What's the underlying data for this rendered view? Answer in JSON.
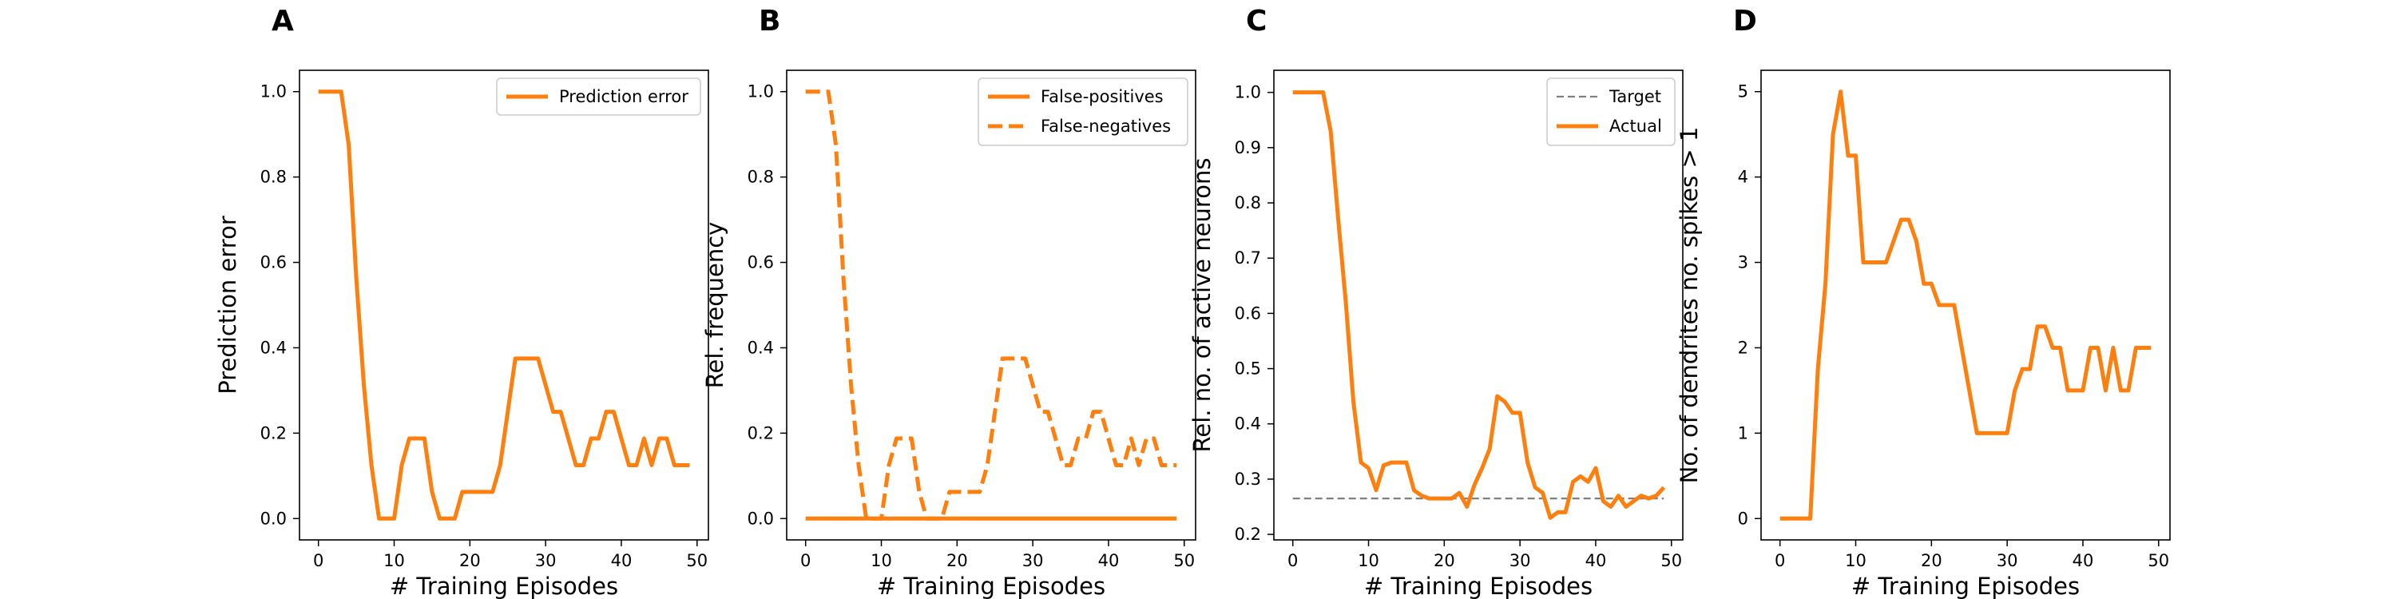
{
  "figure": {
    "color_line": "#ff7f0e",
    "color_target": "#808080"
  },
  "chart_data": [
    {
      "type": "line",
      "panel_label": "A",
      "xlabel": "# Training Episodes",
      "ylabel": "Prediction error",
      "xlim": [
        -2.5,
        51.5
      ],
      "ylim": [
        -0.05,
        1.05
      ],
      "xticks": [
        0,
        10,
        20,
        30,
        40,
        50
      ],
      "yticks": [
        0.0,
        0.2,
        0.4,
        0.6,
        0.8,
        1.0
      ],
      "ytick_labels": [
        "0.0",
        "0.2",
        "0.4",
        "0.6",
        "0.8",
        "1.0"
      ],
      "legend": "top-right",
      "series": [
        {
          "name": "Prediction error",
          "style": "solid",
          "x": [
            0,
            1,
            2,
            3,
            4,
            5,
            6,
            7,
            8,
            9,
            10,
            11,
            12,
            13,
            14,
            15,
            16,
            17,
            18,
            19,
            20,
            21,
            22,
            23,
            24,
            25,
            26,
            27,
            28,
            29,
            30,
            31,
            32,
            33,
            34,
            35,
            36,
            37,
            38,
            39,
            40,
            41,
            42,
            43,
            44,
            45,
            46,
            47,
            48,
            49
          ],
          "y": [
            1.0,
            1.0,
            1.0,
            1.0,
            0.875,
            0.5625,
            0.3125,
            0.125,
            0.0,
            0.0,
            0.0,
            0.125,
            0.1875,
            0.1875,
            0.1875,
            0.0625,
            0.0,
            0.0,
            0.0,
            0.0625,
            0.0625,
            0.0625,
            0.0625,
            0.0625,
            0.125,
            0.25,
            0.375,
            0.375,
            0.375,
            0.375,
            0.3125,
            0.25,
            0.25,
            0.1875,
            0.125,
            0.125,
            0.1875,
            0.1875,
            0.25,
            0.25,
            0.1875,
            0.125,
            0.125,
            0.1875,
            0.125,
            0.1875,
            0.1875,
            0.125,
            0.125,
            0.125
          ]
        }
      ]
    },
    {
      "type": "line",
      "panel_label": "B",
      "xlabel": "# Training Episodes",
      "ylabel": "Rel. frequency",
      "xlim": [
        -2.5,
        51.5
      ],
      "ylim": [
        -0.05,
        1.05
      ],
      "xticks": [
        0,
        10,
        20,
        30,
        40,
        50
      ],
      "yticks": [
        0.0,
        0.2,
        0.4,
        0.6,
        0.8,
        1.0
      ],
      "ytick_labels": [
        "0.0",
        "0.2",
        "0.4",
        "0.6",
        "0.8",
        "1.0"
      ],
      "legend": "top-right",
      "series": [
        {
          "name": "False-positives",
          "style": "solid",
          "x": [
            0,
            1,
            2,
            3,
            4,
            5,
            6,
            7,
            8,
            9,
            10,
            11,
            12,
            13,
            14,
            15,
            16,
            17,
            18,
            19,
            20,
            21,
            22,
            23,
            24,
            25,
            26,
            27,
            28,
            29,
            30,
            31,
            32,
            33,
            34,
            35,
            36,
            37,
            38,
            39,
            40,
            41,
            42,
            43,
            44,
            45,
            46,
            47,
            48,
            49
          ],
          "y": [
            0,
            0,
            0,
            0,
            0,
            0,
            0,
            0,
            0,
            0,
            0,
            0,
            0,
            0,
            0,
            0,
            0,
            0,
            0,
            0,
            0,
            0,
            0,
            0,
            0,
            0,
            0,
            0,
            0,
            0,
            0,
            0,
            0,
            0,
            0,
            0,
            0,
            0,
            0,
            0,
            0,
            0,
            0,
            0,
            0,
            0,
            0,
            0,
            0,
            0
          ]
        },
        {
          "name": "False-negatives",
          "style": "dashed",
          "x": [
            0,
            1,
            2,
            3,
            4,
            5,
            6,
            7,
            8,
            9,
            10,
            11,
            12,
            13,
            14,
            15,
            16,
            17,
            18,
            19,
            20,
            21,
            22,
            23,
            24,
            25,
            26,
            27,
            28,
            29,
            30,
            31,
            32,
            33,
            34,
            35,
            36,
            37,
            38,
            39,
            40,
            41,
            42,
            43,
            44,
            45,
            46,
            47,
            48,
            49
          ],
          "y": [
            1.0,
            1.0,
            1.0,
            1.0,
            0.875,
            0.5625,
            0.3125,
            0.125,
            0.0,
            0.0,
            0.0,
            0.125,
            0.1875,
            0.1875,
            0.1875,
            0.0625,
            0.0,
            0.0,
            0.0,
            0.0625,
            0.0625,
            0.0625,
            0.0625,
            0.0625,
            0.125,
            0.25,
            0.375,
            0.375,
            0.375,
            0.375,
            0.3125,
            0.25,
            0.25,
            0.1875,
            0.125,
            0.125,
            0.1875,
            0.1875,
            0.25,
            0.25,
            0.1875,
            0.125,
            0.125,
            0.1875,
            0.125,
            0.1875,
            0.1875,
            0.125,
            0.125,
            0.125
          ]
        }
      ]
    },
    {
      "type": "line",
      "panel_label": "C",
      "xlabel": "# Training Episodes",
      "ylabel": "Rel. no. of active neurons",
      "xlim": [
        -2.5,
        51.5
      ],
      "ylim": [
        0.19,
        1.04
      ],
      "xticks": [
        0,
        10,
        20,
        30,
        40,
        50
      ],
      "yticks": [
        0.2,
        0.3,
        0.4,
        0.5,
        0.6,
        0.7,
        0.8,
        0.9,
        1.0
      ],
      "ytick_labels": [
        "0.2",
        "0.3",
        "0.4",
        "0.5",
        "0.6",
        "0.7",
        "0.8",
        "0.9",
        "1.0"
      ],
      "legend": "top-right",
      "series": [
        {
          "name": "Target",
          "style": "dashed-target",
          "x": [
            0,
            49
          ],
          "y": [
            0.265,
            0.265
          ]
        },
        {
          "name": "Actual",
          "style": "solid",
          "x": [
            0,
            1,
            2,
            3,
            4,
            5,
            6,
            7,
            8,
            9,
            10,
            11,
            12,
            13,
            14,
            15,
            16,
            17,
            18,
            19,
            20,
            21,
            22,
            23,
            24,
            25,
            26,
            27,
            28,
            29,
            30,
            31,
            32,
            33,
            34,
            35,
            36,
            37,
            38,
            39,
            40,
            41,
            42,
            43,
            44,
            45,
            46,
            47,
            48,
            49
          ],
          "y": [
            1.0,
            1.0,
            1.0,
            1.0,
            1.0,
            0.93,
            0.77,
            0.62,
            0.44,
            0.33,
            0.32,
            0.28,
            0.325,
            0.33,
            0.33,
            0.33,
            0.28,
            0.27,
            0.265,
            0.265,
            0.265,
            0.265,
            0.275,
            0.25,
            0.29,
            0.32,
            0.355,
            0.45,
            0.44,
            0.42,
            0.42,
            0.33,
            0.285,
            0.275,
            0.23,
            0.24,
            0.24,
            0.295,
            0.305,
            0.295,
            0.32,
            0.26,
            0.25,
            0.27,
            0.25,
            0.26,
            0.27,
            0.265,
            0.27,
            0.285
          ]
        }
      ]
    },
    {
      "type": "line",
      "panel_label": "D",
      "xlabel": "# Training Episodes",
      "ylabel": "No. of dendrites no. spikes > 1",
      "xlim": [
        -2.5,
        51.5
      ],
      "ylim": [
        -0.25,
        5.25
      ],
      "xticks": [
        0,
        10,
        20,
        30,
        40,
        50
      ],
      "yticks": [
        0,
        1,
        2,
        3,
        4,
        5
      ],
      "ytick_labels": [
        "0",
        "1",
        "2",
        "3",
        "4",
        "5"
      ],
      "legend": "none",
      "series": [
        {
          "name": "",
          "style": "solid",
          "x": [
            0,
            1,
            2,
            3,
            4,
            5,
            6,
            7,
            8,
            9,
            10,
            11,
            12,
            13,
            14,
            15,
            16,
            17,
            18,
            19,
            20,
            21,
            22,
            23,
            24,
            25,
            26,
            27,
            28,
            29,
            30,
            31,
            32,
            33,
            34,
            35,
            36,
            37,
            38,
            39,
            40,
            41,
            42,
            43,
            44,
            45,
            46,
            47,
            48,
            49
          ],
          "y": [
            0,
            0,
            0,
            0,
            0,
            1.75,
            2.75,
            4.5,
            5.0,
            4.25,
            4.25,
            3.0,
            3.0,
            3.0,
            3.0,
            3.25,
            3.5,
            3.5,
            3.25,
            2.75,
            2.75,
            2.5,
            2.5,
            2.5,
            2.0,
            1.5,
            1.0,
            1.0,
            1.0,
            1.0,
            1.0,
            1.5,
            1.75,
            1.75,
            2.25,
            2.25,
            2.0,
            2.0,
            1.5,
            1.5,
            1.5,
            2.0,
            2.0,
            1.5,
            2.0,
            1.5,
            1.5,
            2.0,
            2.0,
            2.0
          ]
        }
      ]
    }
  ]
}
